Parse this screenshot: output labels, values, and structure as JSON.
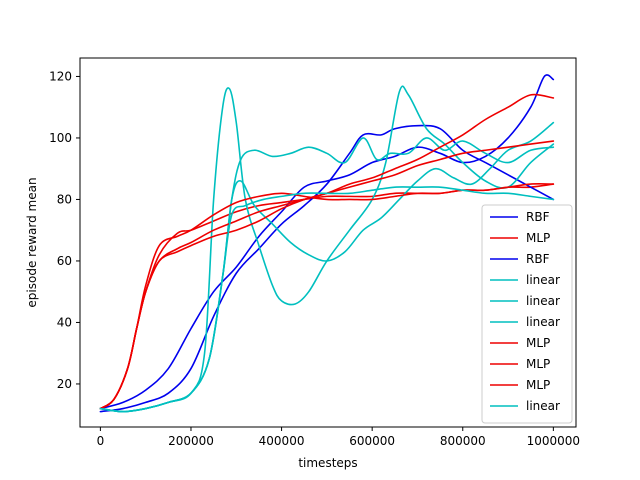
{
  "chart_data": {
    "type": "line",
    "title": "",
    "xlabel": "timesteps",
    "ylabel": "episode reward mean",
    "xlim": [
      -45000,
      1050000
    ],
    "ylim": [
      6,
      126
    ],
    "xticks": [
      0,
      200000,
      400000,
      600000,
      800000,
      1000000
    ],
    "xtick_labels": [
      "0",
      "200000",
      "400000",
      "600000",
      "800000",
      "1000000"
    ],
    "yticks": [
      20,
      40,
      60,
      80,
      100,
      120
    ],
    "ytick_labels": [
      "20",
      "40",
      "60",
      "80",
      "100",
      "120"
    ],
    "grid": false,
    "legend_position": "lower-right",
    "colors": {
      "RBF": "#0000ee",
      "MLP": "#ee0000",
      "linear": "#00bfbf",
      "axis": "#000000",
      "legend_border": "#cccccc"
    },
    "series": [
      {
        "name": "RBF",
        "kind": "RBF",
        "points": [
          [
            0,
            12
          ],
          [
            50000,
            14
          ],
          [
            100000,
            18
          ],
          [
            150000,
            25
          ],
          [
            200000,
            38
          ],
          [
            250000,
            50
          ],
          [
            300000,
            58
          ],
          [
            350000,
            68
          ],
          [
            400000,
            76
          ],
          [
            450000,
            84
          ],
          [
            500000,
            86
          ],
          [
            550000,
            88
          ],
          [
            600000,
            92
          ],
          [
            650000,
            94
          ],
          [
            700000,
            97
          ],
          [
            750000,
            95
          ],
          [
            800000,
            92
          ],
          [
            850000,
            94
          ],
          [
            900000,
            100
          ],
          [
            950000,
            110
          ],
          [
            980000,
            120
          ],
          [
            1000000,
            119
          ]
        ]
      },
      {
        "name": "MLP",
        "kind": "MLP",
        "points": [
          [
            0,
            12
          ],
          [
            30000,
            15
          ],
          [
            60000,
            25
          ],
          [
            80000,
            38
          ],
          [
            100000,
            50
          ],
          [
            130000,
            62
          ],
          [
            170000,
            69
          ],
          [
            200000,
            70
          ],
          [
            250000,
            73
          ],
          [
            300000,
            76
          ],
          [
            350000,
            78
          ],
          [
            400000,
            79
          ],
          [
            450000,
            80
          ],
          [
            500000,
            81
          ],
          [
            550000,
            81
          ],
          [
            600000,
            81
          ],
          [
            650000,
            82
          ],
          [
            700000,
            82
          ],
          [
            750000,
            82
          ],
          [
            800000,
            83
          ],
          [
            850000,
            83
          ],
          [
            900000,
            84
          ],
          [
            950000,
            84
          ],
          [
            1000000,
            85
          ]
        ]
      },
      {
        "name": "RBF",
        "kind": "RBF",
        "points": [
          [
            0,
            11
          ],
          [
            50000,
            12
          ],
          [
            100000,
            14
          ],
          [
            150000,
            17
          ],
          [
            200000,
            25
          ],
          [
            250000,
            42
          ],
          [
            300000,
            56
          ],
          [
            350000,
            64
          ],
          [
            400000,
            72
          ],
          [
            450000,
            78
          ],
          [
            500000,
            85
          ],
          [
            550000,
            95
          ],
          [
            580000,
            101
          ],
          [
            620000,
            101
          ],
          [
            650000,
            103
          ],
          [
            700000,
            104
          ],
          [
            750000,
            103
          ],
          [
            800000,
            96
          ],
          [
            850000,
            92
          ],
          [
            900000,
            88
          ],
          [
            950000,
            84
          ],
          [
            1000000,
            80
          ]
        ]
      },
      {
        "name": "linear",
        "kind": "linear",
        "points": [
          [
            0,
            12
          ],
          [
            50000,
            11
          ],
          [
            100000,
            12
          ],
          [
            150000,
            14
          ],
          [
            200000,
            17
          ],
          [
            230000,
            30
          ],
          [
            250000,
            80
          ],
          [
            270000,
            110
          ],
          [
            285000,
            116
          ],
          [
            300000,
            105
          ],
          [
            320000,
            80
          ],
          [
            350000,
            65
          ],
          [
            380000,
            52
          ],
          [
            400000,
            47
          ],
          [
            430000,
            46
          ],
          [
            460000,
            50
          ],
          [
            500000,
            60
          ],
          [
            550000,
            70
          ],
          [
            600000,
            80
          ],
          [
            630000,
            92
          ],
          [
            660000,
            115
          ],
          [
            680000,
            114
          ],
          [
            720000,
            103
          ],
          [
            760000,
            98
          ],
          [
            800000,
            92
          ],
          [
            850000,
            86
          ],
          [
            900000,
            84
          ],
          [
            950000,
            92
          ],
          [
            1000000,
            98
          ]
        ]
      },
      {
        "name": "linear",
        "kind": "linear",
        "points": [
          [
            0,
            12
          ],
          [
            50000,
            11
          ],
          [
            100000,
            12
          ],
          [
            150000,
            14
          ],
          [
            200000,
            17
          ],
          [
            240000,
            28
          ],
          [
            270000,
            55
          ],
          [
            290000,
            80
          ],
          [
            310000,
            93
          ],
          [
            340000,
            96
          ],
          [
            380000,
            94
          ],
          [
            420000,
            95
          ],
          [
            460000,
            97
          ],
          [
            500000,
            95
          ],
          [
            540000,
            92
          ],
          [
            580000,
            100
          ],
          [
            610000,
            93
          ],
          [
            640000,
            95
          ],
          [
            680000,
            95
          ],
          [
            720000,
            100
          ],
          [
            760000,
            96
          ],
          [
            800000,
            99
          ],
          [
            850000,
            95
          ],
          [
            900000,
            92
          ],
          [
            950000,
            96
          ],
          [
            1000000,
            97
          ]
        ]
      },
      {
        "name": "linear",
        "kind": "linear",
        "points": [
          [
            0,
            12
          ],
          [
            50000,
            11
          ],
          [
            100000,
            12
          ],
          [
            150000,
            14
          ],
          [
            200000,
            17
          ],
          [
            240000,
            28
          ],
          [
            270000,
            55
          ],
          [
            290000,
            80
          ],
          [
            310000,
            86
          ],
          [
            340000,
            78
          ],
          [
            380000,
            72
          ],
          [
            420000,
            66
          ],
          [
            460000,
            62
          ],
          [
            500000,
            60
          ],
          [
            540000,
            63
          ],
          [
            580000,
            70
          ],
          [
            620000,
            74
          ],
          [
            660000,
            80
          ],
          [
            700000,
            86
          ],
          [
            740000,
            90
          ],
          [
            780000,
            87
          ],
          [
            820000,
            85
          ],
          [
            860000,
            90
          ],
          [
            900000,
            96
          ],
          [
            950000,
            99
          ],
          [
            1000000,
            105
          ]
        ]
      },
      {
        "name": "MLP",
        "kind": "MLP",
        "points": [
          [
            0,
            12
          ],
          [
            30000,
            15
          ],
          [
            60000,
            25
          ],
          [
            80000,
            38
          ],
          [
            100000,
            50
          ],
          [
            130000,
            60
          ],
          [
            170000,
            64
          ],
          [
            200000,
            66
          ],
          [
            250000,
            70
          ],
          [
            300000,
            73
          ],
          [
            350000,
            76
          ],
          [
            400000,
            78
          ],
          [
            450000,
            80
          ],
          [
            500000,
            82
          ],
          [
            550000,
            85
          ],
          [
            600000,
            87
          ],
          [
            650000,
            90
          ],
          [
            700000,
            93
          ],
          [
            750000,
            97
          ],
          [
            800000,
            101
          ],
          [
            850000,
            106
          ],
          [
            900000,
            110
          ],
          [
            950000,
            114
          ],
          [
            1000000,
            113
          ]
        ]
      },
      {
        "name": "MLP",
        "kind": "MLP",
        "points": [
          [
            0,
            12
          ],
          [
            30000,
            15
          ],
          [
            60000,
            25
          ],
          [
            80000,
            38
          ],
          [
            100000,
            50
          ],
          [
            130000,
            60
          ],
          [
            170000,
            63
          ],
          [
            200000,
            65
          ],
          [
            250000,
            68
          ],
          [
            300000,
            70
          ],
          [
            350000,
            73
          ],
          [
            400000,
            77
          ],
          [
            450000,
            80
          ],
          [
            500000,
            82
          ],
          [
            550000,
            84
          ],
          [
            600000,
            86
          ],
          [
            650000,
            88
          ],
          [
            700000,
            91
          ],
          [
            750000,
            93
          ],
          [
            800000,
            95
          ],
          [
            850000,
            96
          ],
          [
            900000,
            97
          ],
          [
            950000,
            98
          ],
          [
            1000000,
            99
          ]
        ]
      },
      {
        "name": "MLP",
        "kind": "MLP",
        "points": [
          [
            0,
            12
          ],
          [
            30000,
            15
          ],
          [
            60000,
            25
          ],
          [
            80000,
            38
          ],
          [
            100000,
            52
          ],
          [
            130000,
            65
          ],
          [
            170000,
            68
          ],
          [
            200000,
            70
          ],
          [
            250000,
            75
          ],
          [
            300000,
            79
          ],
          [
            350000,
            81
          ],
          [
            400000,
            82
          ],
          [
            450000,
            81
          ],
          [
            500000,
            80
          ],
          [
            550000,
            80
          ],
          [
            600000,
            80
          ],
          [
            650000,
            81
          ],
          [
            700000,
            82
          ],
          [
            750000,
            82
          ],
          [
            800000,
            83
          ],
          [
            850000,
            83
          ],
          [
            900000,
            84
          ],
          [
            950000,
            85
          ],
          [
            1000000,
            85
          ]
        ]
      },
      {
        "name": "linear",
        "kind": "linear",
        "points": [
          [
            0,
            12
          ],
          [
            50000,
            11
          ],
          [
            100000,
            12
          ],
          [
            150000,
            14
          ],
          [
            200000,
            17
          ],
          [
            240000,
            28
          ],
          [
            270000,
            55
          ],
          [
            290000,
            75
          ],
          [
            320000,
            78
          ],
          [
            360000,
            80
          ],
          [
            400000,
            81
          ],
          [
            450000,
            82
          ],
          [
            500000,
            82
          ],
          [
            550000,
            82
          ],
          [
            600000,
            83
          ],
          [
            650000,
            84
          ],
          [
            700000,
            84
          ],
          [
            750000,
            84
          ],
          [
            800000,
            83
          ],
          [
            850000,
            82
          ],
          [
            900000,
            82
          ],
          [
            950000,
            81
          ],
          [
            1000000,
            80
          ]
        ]
      }
    ]
  }
}
